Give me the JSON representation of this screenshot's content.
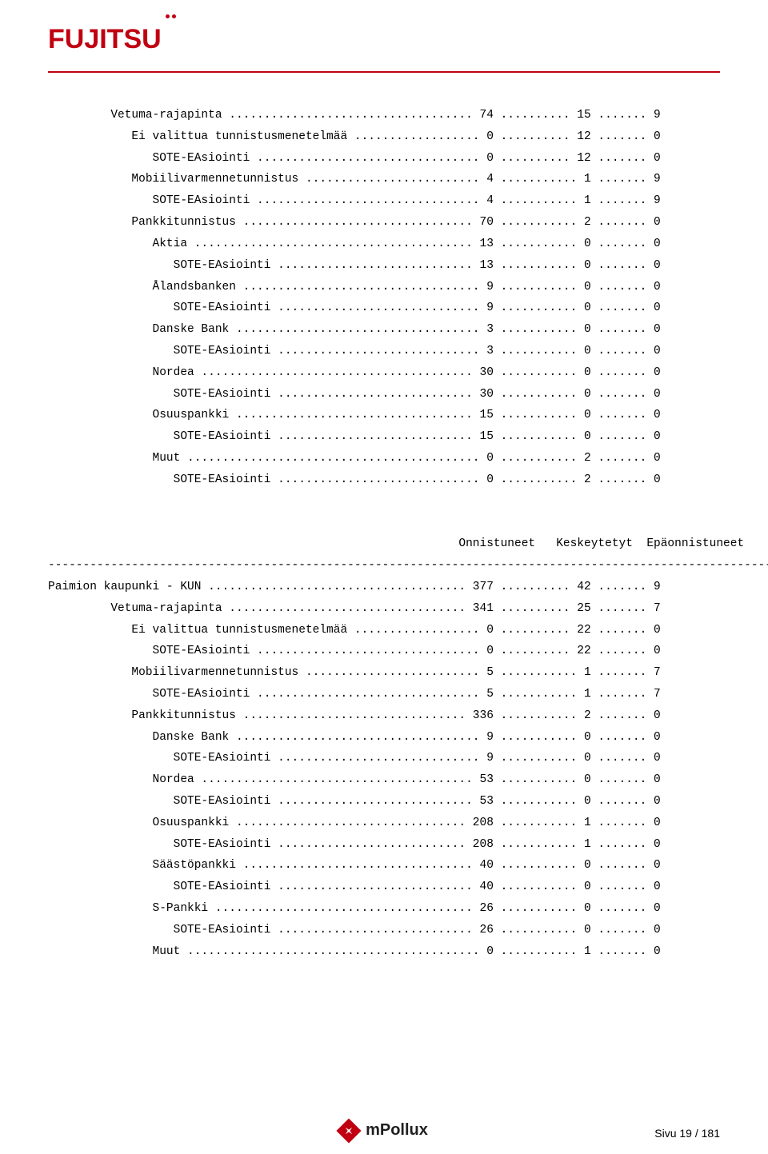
{
  "brand": {
    "name": "FUJITSU",
    "color": "#c00011"
  },
  "footer": {
    "label": "mPollux",
    "page_label": "Sivu 19 / 181"
  },
  "layout": {
    "col1_width": 55,
    "col2_width": 9,
    "col3_width": 14,
    "col4_width": 10,
    "sep_step": -1,
    "page_width_chars": 107
  },
  "headers": {
    "c1": "Onnistuneet",
    "c2": "Keskeytetyt",
    "c3": "Epäonnistuneet"
  },
  "block1": [
    {
      "indent": 3,
      "label": "Vetuma-rajapinta",
      "v": [
        "74",
        "15",
        "9"
      ]
    },
    {
      "indent": 4,
      "label": "Ei valittua tunnistusmenetelmää",
      "v": [
        "0",
        "12",
        "0"
      ]
    },
    {
      "indent": 5,
      "label": "SOTE-EAsiointi",
      "v": [
        "0",
        "12",
        "0"
      ]
    },
    {
      "indent": 4,
      "label": "Mobiilivarmennetunnistus",
      "v": [
        "4",
        "1",
        "9"
      ]
    },
    {
      "indent": 5,
      "label": "SOTE-EAsiointi",
      "v": [
        "4",
        "1",
        "9"
      ]
    },
    {
      "indent": 4,
      "label": "Pankkitunnistus",
      "v": [
        "70",
        "2",
        "0"
      ]
    },
    {
      "indent": 5,
      "label": "Aktia",
      "v": [
        "13",
        "0",
        "0"
      ]
    },
    {
      "indent": 6,
      "label": "SOTE-EAsiointi",
      "v": [
        "13",
        "0",
        "0"
      ]
    },
    {
      "indent": 5,
      "label": "Ålandsbanken",
      "v": [
        "9",
        "0",
        "0"
      ]
    },
    {
      "indent": 6,
      "label": "SOTE-EAsiointi",
      "v": [
        "9",
        "0",
        "0"
      ]
    },
    {
      "indent": 5,
      "label": "Danske Bank",
      "v": [
        "3",
        "0",
        "0"
      ]
    },
    {
      "indent": 6,
      "label": "SOTE-EAsiointi",
      "v": [
        "3",
        "0",
        "0"
      ]
    },
    {
      "indent": 5,
      "label": "Nordea",
      "v": [
        "30",
        "0",
        "0"
      ]
    },
    {
      "indent": 6,
      "label": "SOTE-EAsiointi",
      "v": [
        "30",
        "0",
        "0"
      ]
    },
    {
      "indent": 5,
      "label": "Osuuspankki",
      "v": [
        "15",
        "0",
        "0"
      ]
    },
    {
      "indent": 6,
      "label": "SOTE-EAsiointi",
      "v": [
        "15",
        "0",
        "0"
      ]
    },
    {
      "indent": 5,
      "label": "Muut",
      "v": [
        "0",
        "2",
        "0"
      ]
    },
    {
      "indent": 6,
      "label": "SOTE-EAsiointi",
      "v": [
        "0",
        "2",
        "0"
      ]
    }
  ],
  "block2_title": "Paimion kaupunki - KUN",
  "block2_title_vals": [
    "377",
    "42",
    "9"
  ],
  "block2": [
    {
      "indent": 3,
      "label": "Vetuma-rajapinta",
      "v": [
        "341",
        "25",
        "7"
      ]
    },
    {
      "indent": 4,
      "label": "Ei valittua tunnistusmenetelmää",
      "v": [
        "0",
        "22",
        "0"
      ]
    },
    {
      "indent": 5,
      "label": "SOTE-EAsiointi",
      "v": [
        "0",
        "22",
        "0"
      ]
    },
    {
      "indent": 4,
      "label": "Mobiilivarmennetunnistus",
      "v": [
        "5",
        "1",
        "7"
      ]
    },
    {
      "indent": 5,
      "label": "SOTE-EAsiointi",
      "v": [
        "5",
        "1",
        "7"
      ]
    },
    {
      "indent": 4,
      "label": "Pankkitunnistus",
      "v": [
        "336",
        "2",
        "0"
      ]
    },
    {
      "indent": 5,
      "label": "Danske Bank",
      "v": [
        "9",
        "0",
        "0"
      ]
    },
    {
      "indent": 6,
      "label": "SOTE-EAsiointi",
      "v": [
        "9",
        "0",
        "0"
      ]
    },
    {
      "indent": 5,
      "label": "Nordea",
      "v": [
        "53",
        "0",
        "0"
      ]
    },
    {
      "indent": 6,
      "label": "SOTE-EAsiointi",
      "v": [
        "53",
        "0",
        "0"
      ]
    },
    {
      "indent": 5,
      "label": "Osuuspankki",
      "v": [
        "208",
        "1",
        "0"
      ]
    },
    {
      "indent": 6,
      "label": "SOTE-EAsiointi",
      "v": [
        "208",
        "1",
        "0"
      ]
    },
    {
      "indent": 5,
      "label": "Säästöpankki",
      "v": [
        "40",
        "0",
        "0"
      ]
    },
    {
      "indent": 6,
      "label": "SOTE-EAsiointi",
      "v": [
        "40",
        "0",
        "0"
      ]
    },
    {
      "indent": 5,
      "label": "S-Pankki",
      "v": [
        "26",
        "0",
        "0"
      ]
    },
    {
      "indent": 6,
      "label": "SOTE-EAsiointi",
      "v": [
        "26",
        "0",
        "0"
      ]
    },
    {
      "indent": 5,
      "label": "Muut",
      "v": [
        "0",
        "1",
        "0"
      ]
    }
  ]
}
